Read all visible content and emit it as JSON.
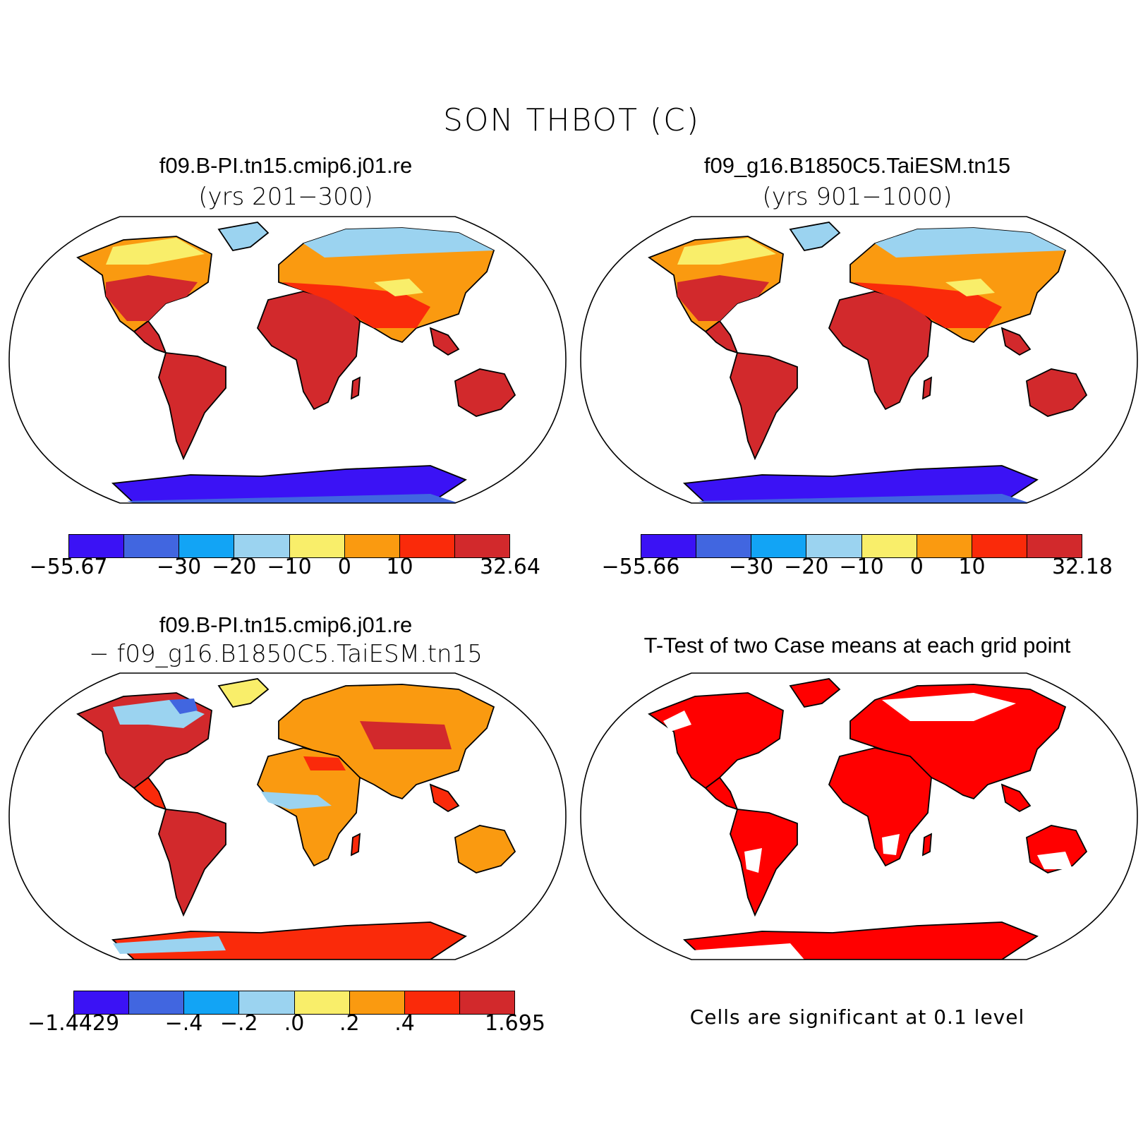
{
  "figure": {
    "title": "SON THBOT (C)"
  },
  "colors": [
    "#3b12f5",
    "#4166e0",
    "#12a4f5",
    "#9bd3f0",
    "#f9ee6a",
    "#fa9a10",
    "#fa2a0a",
    "#d2292c"
  ],
  "panels": {
    "top_left": {
      "title": "f09.B-PI.tn15.cmip6.j01.re",
      "subtitle": "(yrs 201−300)",
      "colorbar_labels": [
        "−55.67",
        "−30",
        "−20",
        "−10",
        "0",
        "10",
        "32.64"
      ]
    },
    "top_right": {
      "title": "f09_g16.B1850C5.TaiESM.tn15",
      "subtitle": "(yrs 901−1000)",
      "colorbar_labels": [
        "−55.66",
        "−30",
        "−20",
        "−10",
        "0",
        "10",
        "32.18"
      ]
    },
    "bottom_left": {
      "title": "f09.B-PI.tn15.cmip6.j01.re",
      "subtitle": "− f09_g16.B1850C5.TaiESM.tn15",
      "colorbar_labels": [
        "−1.4429",
        "−.4",
        "−.2",
        ".0",
        ".2",
        ".4",
        "1.695"
      ]
    },
    "bottom_right": {
      "title": "T-Test of two Case means at each grid point",
      "note": "Cells are significant at 0.1 level",
      "significant_color": "#ff0000"
    }
  }
}
